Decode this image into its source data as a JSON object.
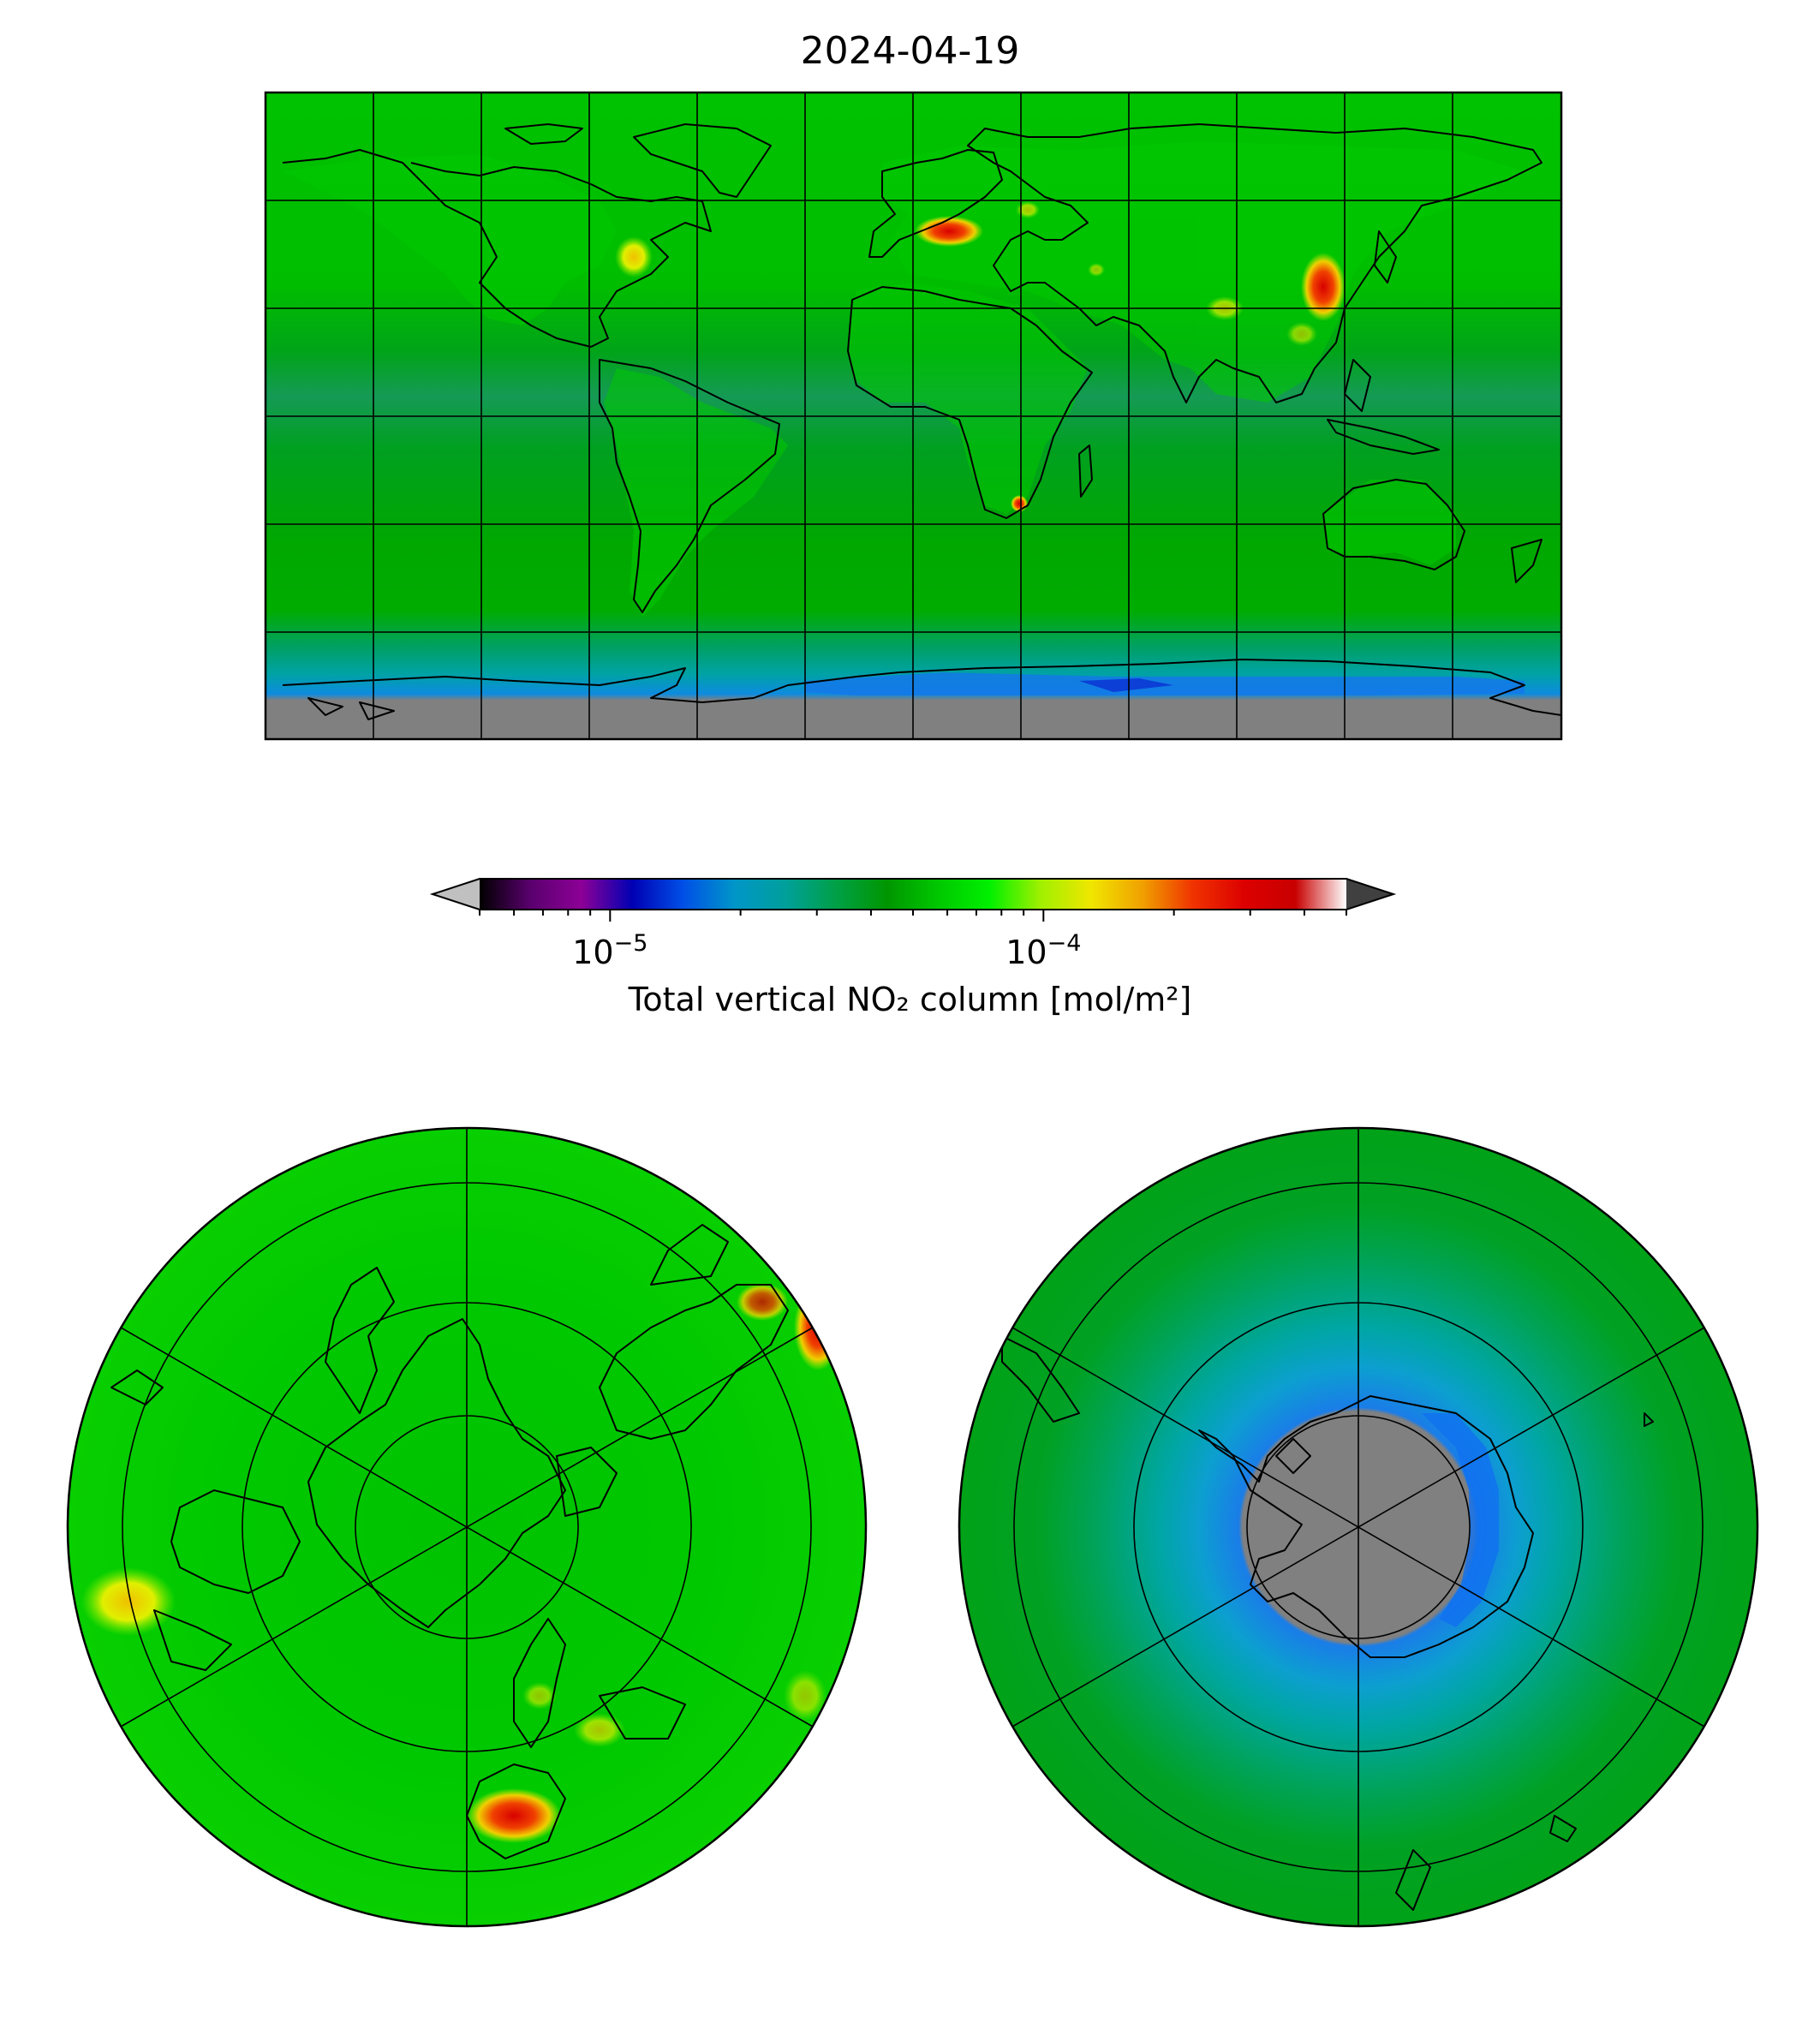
{
  "title": "2024-04-19",
  "colorbar": {
    "label": "Total vertical NO₂ column [mol/m²]",
    "scale": "log",
    "range": [
      5e-06,
      0.0005
    ],
    "ticks": [
      {
        "value": 1e-05,
        "base": "10",
        "exp": "−5"
      },
      {
        "value": 0.0001,
        "base": "10",
        "exp": "−4"
      }
    ],
    "colors": [
      "#000000",
      "#5a006e",
      "#8c0096",
      "#0000b4",
      "#0050e6",
      "#0096c8",
      "#00a09b",
      "#00a046",
      "#009600",
      "#00c800",
      "#00f000",
      "#a0f000",
      "#f0e600",
      "#f0a000",
      "#f03200",
      "#dc0000",
      "#c80000",
      "#ffffff"
    ],
    "under_color": "#c0c0c0",
    "over_color": "#404040"
  },
  "maps": [
    {
      "name": "global",
      "projection": "plate carree",
      "gridlines": "30 deg meridians, 30 deg parallels"
    },
    {
      "name": "north-polar",
      "projection": "north polar stereographic",
      "gridlines": "60 deg meridians, 15 deg parallels"
    },
    {
      "name": "south-polar",
      "projection": "south polar stereographic",
      "gridlines": "60 deg meridians, 15 deg parallels"
    }
  ],
  "colors": {
    "ocean_green": "#00bf00",
    "land_green": "#00c400",
    "tropical_dark_green": "#009a10",
    "antarctic_teal": "#00a8a0",
    "antarctic_blue": "#0f7af0",
    "missing_gray": "#808080",
    "hotspot_red": "#d80000",
    "hotspot_yellow": "#f0e000",
    "coastline": "#000000"
  }
}
